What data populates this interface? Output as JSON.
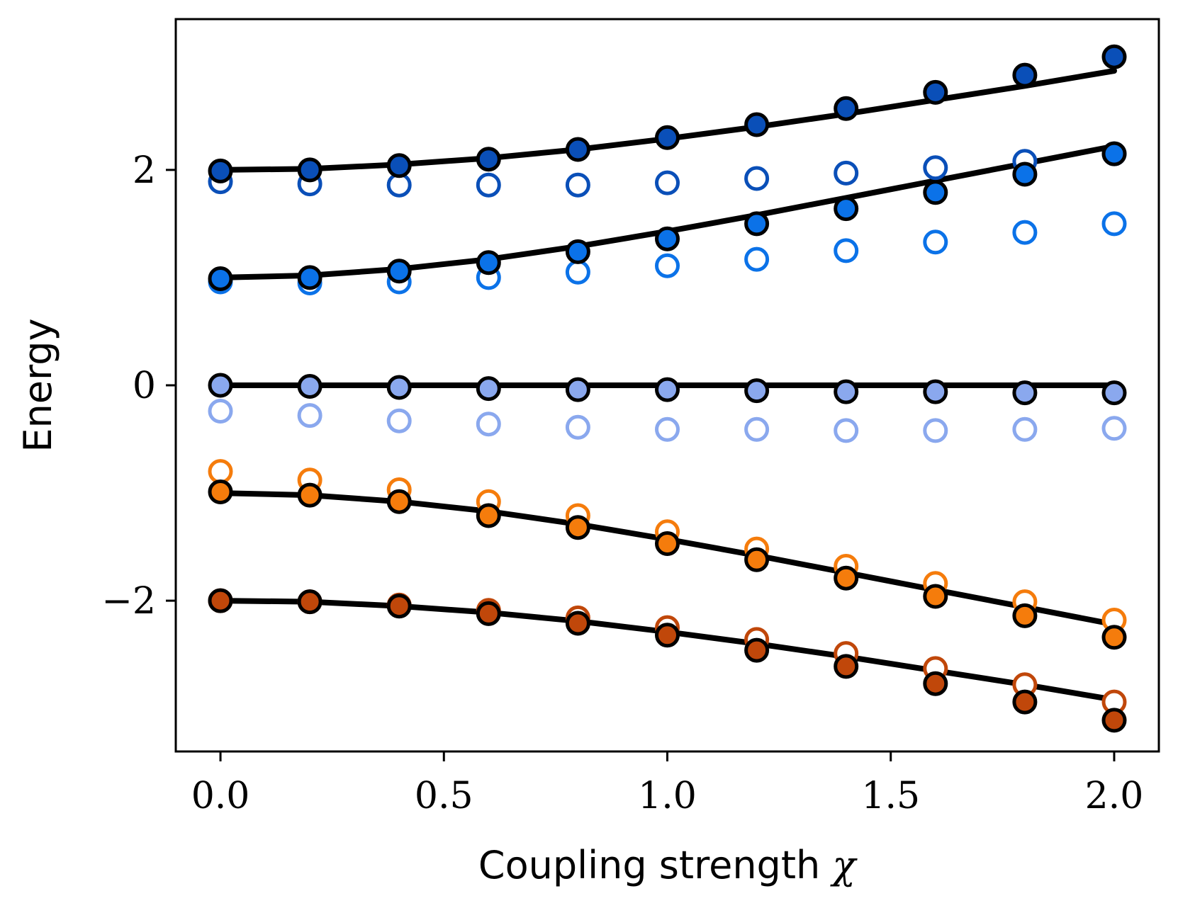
{
  "chart_data": {
    "type": "scatter",
    "title": "",
    "xlabel": "Coupling strength",
    "xlabel_symbol": "χ",
    "ylabel": "Energy",
    "xlim": [
      -0.1,
      2.1
    ],
    "ylim": [
      -3.4,
      3.4
    ],
    "xticks": [
      0.0,
      0.5,
      1.0,
      1.5,
      2.0
    ],
    "xtick_labels": [
      "0.0",
      "0.5",
      "1.0",
      "1.5",
      "2.0"
    ],
    "yticks": [
      -2,
      0,
      2
    ],
    "ytick_labels": [
      "−2",
      "0",
      "2"
    ],
    "grid": false,
    "legend": "none",
    "x": [
      0.0,
      0.2,
      0.4,
      0.6,
      0.8,
      1.0,
      1.2,
      1.4,
      1.6,
      1.8,
      2.0
    ],
    "lines": [
      {
        "name": "exact-level-1",
        "color": "#000000",
        "values": [
          -2.0,
          -2.01,
          -2.05,
          -2.11,
          -2.19,
          -2.29,
          -2.4,
          -2.52,
          -2.65,
          -2.78,
          -2.92
        ]
      },
      {
        "name": "exact-level-2",
        "color": "#000000",
        "values": [
          -1.0,
          -1.02,
          -1.08,
          -1.17,
          -1.29,
          -1.43,
          -1.58,
          -1.74,
          -1.9,
          -2.06,
          -2.22
        ]
      },
      {
        "name": "exact-level-3",
        "color": "#000000",
        "values": [
          0.0,
          0.0,
          0.0,
          0.0,
          0.0,
          0.0,
          0.0,
          0.0,
          0.0,
          0.0,
          0.0
        ]
      },
      {
        "name": "exact-level-4",
        "color": "#000000",
        "values": [
          1.0,
          1.02,
          1.08,
          1.17,
          1.29,
          1.43,
          1.58,
          1.74,
          1.9,
          2.06,
          2.22
        ]
      },
      {
        "name": "exact-level-5",
        "color": "#000000",
        "values": [
          2.0,
          2.01,
          2.05,
          2.11,
          2.19,
          2.29,
          2.4,
          2.52,
          2.65,
          2.78,
          2.92
        ]
      }
    ],
    "series": [
      {
        "name": "level-1-filled",
        "style": "filled",
        "color": "#c0470a",
        "values": [
          -2.0,
          -2.01,
          -2.05,
          -2.12,
          -2.21,
          -2.32,
          -2.46,
          -2.61,
          -2.77,
          -2.94,
          -3.11
        ]
      },
      {
        "name": "level-1-open",
        "style": "open",
        "color": "#c0470a",
        "values": [
          -2.0,
          -2.01,
          -2.04,
          -2.09,
          -2.16,
          -2.25,
          -2.36,
          -2.49,
          -2.63,
          -2.78,
          -2.94
        ]
      },
      {
        "name": "level-2-filled",
        "style": "filled",
        "color": "#f57c0c",
        "values": [
          -0.99,
          -1.02,
          -1.08,
          -1.21,
          -1.32,
          -1.47,
          -1.62,
          -1.79,
          -1.96,
          -2.14,
          -2.34
        ]
      },
      {
        "name": "level-2-open",
        "style": "open",
        "color": "#f57c0c",
        "values": [
          -0.8,
          -0.88,
          -0.97,
          -1.08,
          -1.21,
          -1.36,
          -1.52,
          -1.68,
          -1.84,
          -2.01,
          -2.18
        ]
      },
      {
        "name": "level-3-filled",
        "style": "filled",
        "color": "#8aa8ee",
        "values": [
          0.0,
          -0.01,
          -0.02,
          -0.03,
          -0.04,
          -0.04,
          -0.05,
          -0.06,
          -0.06,
          -0.07,
          -0.07
        ]
      },
      {
        "name": "level-3-open",
        "style": "open",
        "color": "#8aa8ee",
        "values": [
          -0.24,
          -0.28,
          -0.33,
          -0.36,
          -0.39,
          -0.41,
          -0.41,
          -0.42,
          -0.42,
          -0.41,
          -0.4
        ]
      },
      {
        "name": "level-4-filled",
        "style": "filled",
        "color": "#0b72e8",
        "values": [
          0.99,
          1.0,
          1.06,
          1.14,
          1.24,
          1.36,
          1.5,
          1.64,
          1.79,
          1.96,
          2.15
        ]
      },
      {
        "name": "level-4-open",
        "style": "open",
        "color": "#0b72e8",
        "values": [
          0.96,
          0.95,
          0.96,
          1.0,
          1.05,
          1.11,
          1.17,
          1.25,
          1.33,
          1.42,
          1.5
        ]
      },
      {
        "name": "level-5-filled",
        "style": "filled",
        "color": "#0a4fb8",
        "values": [
          1.99,
          2.0,
          2.04,
          2.1,
          2.19,
          2.3,
          2.42,
          2.57,
          2.72,
          2.88,
          3.05
        ]
      },
      {
        "name": "level-5-open",
        "style": "open",
        "color": "#0a4fb8",
        "values": [
          1.89,
          1.87,
          1.86,
          1.86,
          1.86,
          1.88,
          1.92,
          1.97,
          2.02,
          2.08,
          2.15
        ]
      }
    ]
  }
}
